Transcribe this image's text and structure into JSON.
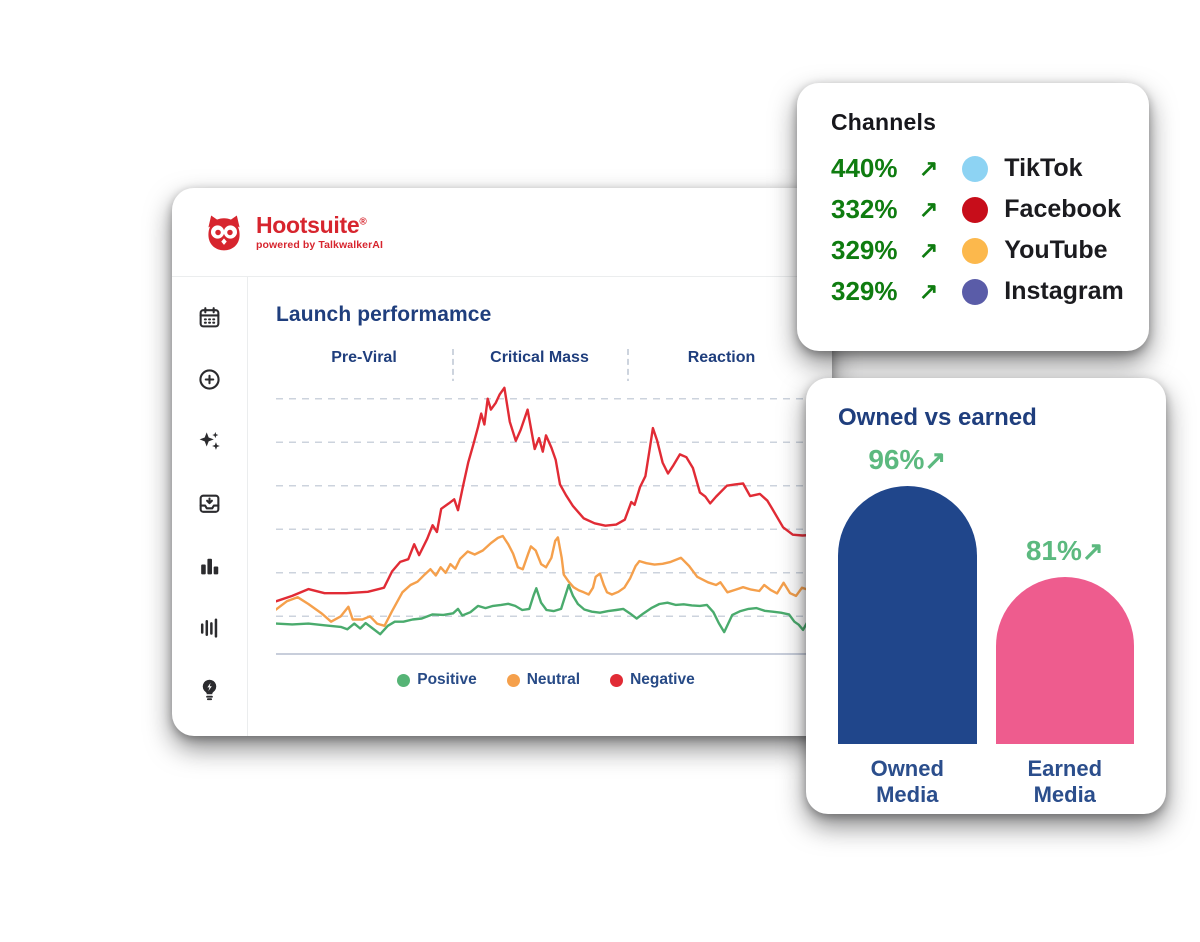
{
  "brand": {
    "name": "Hootsuite",
    "registered": "®",
    "tagline": "powered by TalkwalkerAI",
    "color": "#d7252e"
  },
  "sidebar": {
    "items": [
      {
        "icon": "calendar-icon"
      },
      {
        "icon": "plus-circle-icon"
      },
      {
        "icon": "sparkles-icon"
      },
      {
        "icon": "inbox-download-icon"
      },
      {
        "icon": "bar-chart-icon"
      },
      {
        "icon": "equalizer-icon"
      },
      {
        "icon": "lightbulb-bolt-icon"
      }
    ]
  },
  "launch_chart": {
    "title": "Launch performamce",
    "phases": [
      "Pre-Viral",
      "Critical Mass",
      "Reaction"
    ],
    "legend": [
      {
        "label": "Positive",
        "color": "#56b476"
      },
      {
        "label": "Neutral",
        "color": "#f5a04c"
      },
      {
        "label": "Negative",
        "color": "#e12b35"
      }
    ]
  },
  "channels_card": {
    "title": "Channels",
    "arrow": "↗",
    "change_color": "#0f7c10",
    "rows": [
      {
        "change": "440%",
        "channel": "TikTok",
        "dot_color": "#8dd3f3"
      },
      {
        "change": "332%",
        "channel": "Facebook",
        "dot_color": "#c70d1a"
      },
      {
        "change": "329%",
        "channel": "YouTube",
        "dot_color": "#fcb84c"
      },
      {
        "change": "329%",
        "channel": "Instagram",
        "dot_color": "#5a5ca8"
      }
    ]
  },
  "owned_card": {
    "title": "Owned vs earned",
    "arrow": "↗",
    "pct_color": "#5cb97f"
  },
  "chart_data": [
    {
      "type": "line",
      "title": "Launch performamce",
      "xlabel": "launch timeline (unlabeled)",
      "ylabel": "mention volume (unlabeled, relative 0-100 estimated)",
      "grid": "horizontal dashed gridlines; dashed vertical phase dividers at x=33 and x=65",
      "legend_position": "bottom-center",
      "phases": [
        {
          "label": "Pre-Viral",
          "x_start": 0,
          "x_end": 33
        },
        {
          "label": "Critical Mass",
          "x_start": 33,
          "x_end": 65
        },
        {
          "label": "Reaction",
          "x_start": 65,
          "x_end": 100
        }
      ],
      "series": [
        {
          "name": "Negative",
          "color": "#e12b35",
          "points": [
            [
              0,
              19
            ],
            [
              3,
              21
            ],
            [
              6,
              23.5
            ],
            [
              9,
              22
            ],
            [
              13,
              22
            ],
            [
              17,
              22.5
            ],
            [
              20,
              24
            ],
            [
              21.5,
              30
            ],
            [
              23,
              33.5
            ],
            [
              24.5,
              34.5
            ],
            [
              25.6,
              40
            ],
            [
              26.5,
              36
            ],
            [
              28,
              42
            ],
            [
              29,
              47
            ],
            [
              29.8,
              44.5
            ],
            [
              30.6,
              53
            ],
            [
              32,
              55
            ],
            [
              33,
              56.5
            ],
            [
              33.7,
              52.5
            ],
            [
              34.6,
              61
            ],
            [
              35.6,
              70
            ],
            [
              36.6,
              77
            ],
            [
              37.4,
              83
            ],
            [
              38,
              88
            ],
            [
              38.6,
              84
            ],
            [
              39.2,
              93.5
            ],
            [
              39.8,
              89.5
            ],
            [
              40.7,
              92
            ],
            [
              41.4,
              95
            ],
            [
              42.3,
              97.5
            ],
            [
              43.3,
              85
            ],
            [
              44.4,
              78
            ],
            [
              45.3,
              82
            ],
            [
              46.6,
              89.5
            ],
            [
              47.9,
              75
            ],
            [
              48.7,
              79
            ],
            [
              49.4,
              74
            ],
            [
              50,
              80
            ],
            [
              51,
              75.5
            ],
            [
              51.8,
              71
            ],
            [
              52.6,
              62
            ],
            [
              53.7,
              58
            ],
            [
              55,
              54
            ],
            [
              57,
              49.5
            ],
            [
              59,
              47.7
            ],
            [
              61,
              46.8
            ],
            [
              63,
              47.2
            ],
            [
              64.6,
              49
            ],
            [
              65.8,
              55.5
            ],
            [
              66.4,
              54.5
            ],
            [
              67.4,
              61
            ],
            [
              68.4,
              65
            ],
            [
              69.2,
              75
            ],
            [
              69.8,
              82.7
            ],
            [
              70.6,
              78
            ],
            [
              71.6,
              70
            ],
            [
              72.6,
              66
            ],
            [
              73.6,
              69
            ],
            [
              74.8,
              73
            ],
            [
              76,
              72
            ],
            [
              77.2,
              68
            ],
            [
              78.5,
              59
            ],
            [
              79.5,
              57.5
            ],
            [
              80.4,
              55
            ],
            [
              81.5,
              57.5
            ],
            [
              83.5,
              61.5
            ],
            [
              85,
              62
            ],
            [
              86.5,
              62.3
            ],
            [
              87.8,
              57.7
            ],
            [
              89.6,
              58.5
            ],
            [
              91,
              56
            ],
            [
              92,
              52.7
            ],
            [
              93.9,
              46.2
            ],
            [
              95.7,
              43.5
            ],
            [
              97.5,
              43.2
            ],
            [
              100,
              43.5
            ]
          ]
        },
        {
          "name": "Neutral",
          "color": "#f5a04c",
          "points": [
            [
              0,
              16
            ],
            [
              2,
              19
            ],
            [
              4,
              20.5
            ],
            [
              6,
              18
            ],
            [
              8.5,
              14.5
            ],
            [
              10.2,
              11.5
            ],
            [
              12,
              13.5
            ],
            [
              13.4,
              17
            ],
            [
              14.2,
              12.3
            ],
            [
              16,
              12.3
            ],
            [
              17.4,
              13.5
            ],
            [
              18.7,
              10.8
            ],
            [
              20.1,
              10
            ],
            [
              21.5,
              15.4
            ],
            [
              23.4,
              22.3
            ],
            [
              24.9,
              25
            ],
            [
              26.2,
              26.2
            ],
            [
              27.5,
              28.8
            ],
            [
              28.6,
              30.8
            ],
            [
              29.6,
              28.5
            ],
            [
              30.5,
              31.5
            ],
            [
              31.4,
              29.5
            ],
            [
              32.3,
              32.7
            ],
            [
              33.2,
              31
            ],
            [
              34.1,
              34.6
            ],
            [
              35.5,
              37.3
            ],
            [
              36.8,
              36.2
            ],
            [
              38.3,
              37.7
            ],
            [
              39.8,
              40.4
            ],
            [
              41.1,
              42.3
            ],
            [
              42,
              43
            ],
            [
              43,
              40
            ],
            [
              43.9,
              36.5
            ],
            [
              44.8,
              31.5
            ],
            [
              45.7,
              30.8
            ],
            [
              46.7,
              36.5
            ],
            [
              47.2,
              39.2
            ],
            [
              48.1,
              37.7
            ],
            [
              49.1,
              32.7
            ],
            [
              50,
              31.5
            ],
            [
              51,
              35
            ],
            [
              51.7,
              41.2
            ],
            [
              52.2,
              42.5
            ],
            [
              52.9,
              35
            ],
            [
              53.3,
              28.8
            ],
            [
              54.2,
              26.2
            ],
            [
              55.1,
              24.2
            ],
            [
              56.1,
              23
            ],
            [
              57,
              22.3
            ],
            [
              57.9,
              21.5
            ],
            [
              58.7,
              24
            ],
            [
              59.2,
              28
            ],
            [
              60,
              29.2
            ],
            [
              60.7,
              25
            ],
            [
              61.3,
              22.3
            ],
            [
              62.2,
              21.5
            ],
            [
              63.4,
              22.5
            ],
            [
              64.5,
              24
            ],
            [
              65.6,
              27.5
            ],
            [
              66.6,
              32
            ],
            [
              67.3,
              33.8
            ],
            [
              68.6,
              33
            ],
            [
              70.1,
              32.5
            ],
            [
              71.6,
              32.8
            ],
            [
              73.1,
              33.5
            ],
            [
              75,
              35
            ],
            [
              76.5,
              32
            ],
            [
              78,
              28
            ],
            [
              80,
              26
            ],
            [
              81.5,
              25
            ],
            [
              82.3,
              26
            ],
            [
              83.6,
              22.3
            ],
            [
              85,
              23.2
            ],
            [
              86.5,
              24.2
            ],
            [
              88,
              23.3
            ],
            [
              89.5,
              22.8
            ],
            [
              90.4,
              25
            ],
            [
              91.6,
              23.2
            ],
            [
              92.8,
              21.9
            ],
            [
              94,
              25.8
            ],
            [
              95.2,
              22
            ],
            [
              96.3,
              21
            ],
            [
              97.4,
              24
            ],
            [
              98.6,
              23.2
            ],
            [
              100,
              23.8
            ]
          ]
        },
        {
          "name": "Positive",
          "color": "#4aab6d",
          "points": [
            [
              0,
              10.8
            ],
            [
              3,
              10.5
            ],
            [
              6,
              10.8
            ],
            [
              9,
              10.2
            ],
            [
              12,
              9.6
            ],
            [
              13.2,
              8.7
            ],
            [
              14.5,
              10.8
            ],
            [
              15.6,
              9
            ],
            [
              16.6,
              11
            ],
            [
              17.8,
              9.2
            ],
            [
              19.3,
              6.9
            ],
            [
              20.7,
              10
            ],
            [
              22,
              11.5
            ],
            [
              23.6,
              11.5
            ],
            [
              25.3,
              12.3
            ],
            [
              27,
              12.7
            ],
            [
              29,
              14.2
            ],
            [
              31,
              14
            ],
            [
              32.8,
              14.6
            ],
            [
              33.7,
              16.2
            ],
            [
              34.5,
              13.8
            ],
            [
              36,
              15
            ],
            [
              37.4,
              17.3
            ],
            [
              38.8,
              16.5
            ],
            [
              40.2,
              17.3
            ],
            [
              41.7,
              17.7
            ],
            [
              43,
              18.1
            ],
            [
              44.3,
              17.3
            ],
            [
              45.6,
              15.8
            ],
            [
              46.9,
              16.2
            ],
            [
              47.7,
              21.2
            ],
            [
              48.2,
              23.8
            ],
            [
              49.1,
              18.5
            ],
            [
              50.1,
              15.8
            ],
            [
              51.4,
              15.4
            ],
            [
              52.8,
              16.2
            ],
            [
              54.2,
              25
            ],
            [
              55,
              21
            ],
            [
              55.9,
              18
            ],
            [
              57.1,
              16
            ],
            [
              58.5,
              15.2
            ],
            [
              60,
              14.8
            ],
            [
              61.5,
              15.4
            ],
            [
              63,
              15.8
            ],
            [
              64.3,
              16.2
            ],
            [
              65.6,
              14.5
            ],
            [
              66.8,
              12.7
            ],
            [
              68,
              14.5
            ],
            [
              69.5,
              16.5
            ],
            [
              71,
              18
            ],
            [
              72.5,
              18.5
            ],
            [
              74,
              17.7
            ],
            [
              75.5,
              17.9
            ],
            [
              77,
              17.5
            ],
            [
              78.5,
              17.3
            ],
            [
              79.8,
              17.7
            ],
            [
              81,
              15
            ],
            [
              82,
              11
            ],
            [
              83,
              7.7
            ],
            [
              84.5,
              14
            ],
            [
              86,
              15.4
            ],
            [
              87.5,
              16.2
            ],
            [
              89,
              16.5
            ],
            [
              90.5,
              15.5
            ],
            [
              92,
              15.2
            ],
            [
              93.5,
              14.8
            ],
            [
              95,
              14.2
            ],
            [
              96,
              11.5
            ],
            [
              96.8,
              10.4
            ],
            [
              97.6,
              8.5
            ],
            [
              98.6,
              12
            ],
            [
              100,
              14.6
            ]
          ]
        }
      ],
      "note": "No numeric axis labels shown in source; values are estimated relative intensities."
    },
    {
      "type": "bar",
      "title": "Owned vs earned",
      "categories": [
        "Owned Media",
        "Earned Media"
      ],
      "values": [
        96,
        81
      ],
      "units": "% growth",
      "bars": [
        {
          "label": "Owned Media",
          "value": "96%",
          "color": "#20468b",
          "height_px": "258px"
        },
        {
          "label": "Earned Media",
          "value": "81%",
          "color": "#ee5c8e",
          "height_px": "167px"
        }
      ]
    }
  ]
}
